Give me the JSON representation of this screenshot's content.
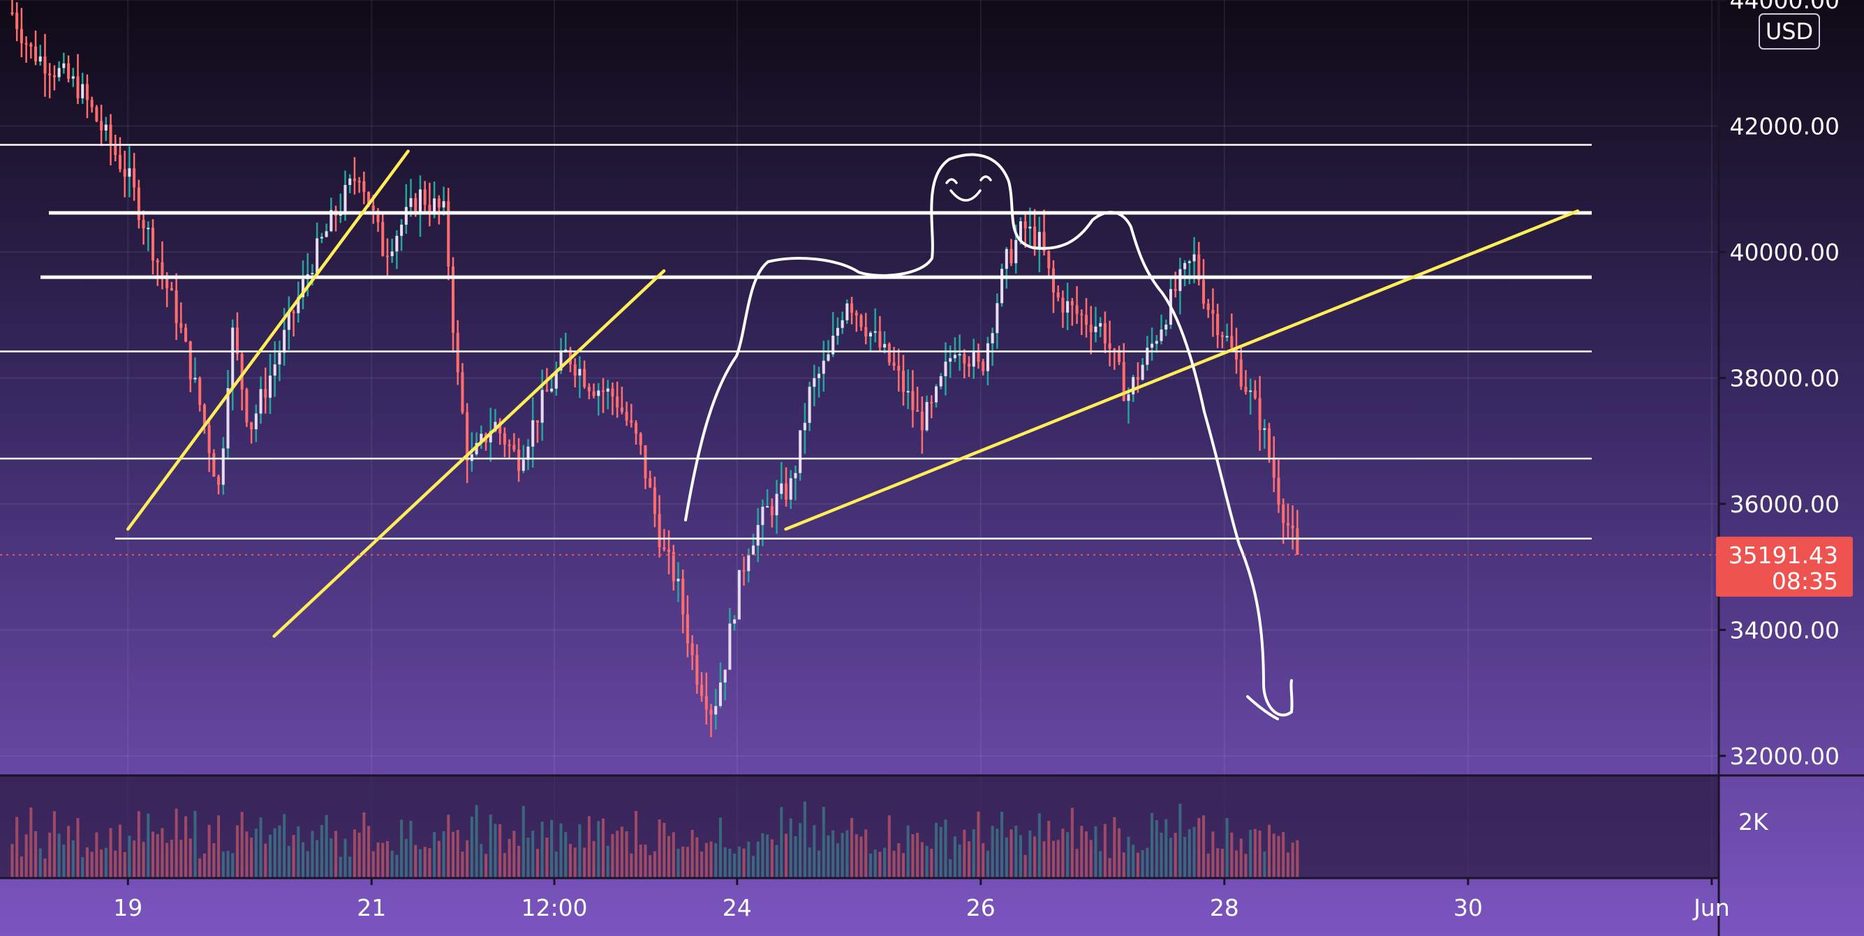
{
  "chart_data": {
    "type": "candlestick",
    "title": "",
    "currency_label": "USD",
    "current_price": "35191.43",
    "countdown": "08:35",
    "y_axis": {
      "range": [
        31700,
        44000
      ],
      "ticks": [
        "44000.00",
        "42000.00",
        "40000.00",
        "38000.00",
        "36000.00",
        "34000.00",
        "32000.00"
      ],
      "tick_values": [
        44000,
        42000,
        40000,
        38000,
        36000,
        34000,
        32000
      ]
    },
    "volume_axis": {
      "ticks": [
        "2K"
      ],
      "tick_values": [
        2000
      ],
      "range": [
        0,
        3600
      ]
    },
    "x_axis": {
      "ticks": [
        "19",
        "21",
        "12:00",
        "24",
        "26",
        "28",
        "30",
        "Jun"
      ],
      "tick_days": [
        19,
        21,
        22.5,
        24,
        26,
        28,
        30,
        32
      ],
      "range_days": [
        17.95,
        33.25
      ]
    },
    "series_path_days": [
      18.05,
      18.2,
      18.6,
      19.0,
      19.2,
      19.4,
      19.6,
      19.75,
      19.85,
      20.0,
      20.2,
      20.5,
      20.7,
      20.9,
      21.1,
      21.4,
      21.6,
      21.7,
      21.8,
      22.0,
      22.2,
      22.4,
      22.6,
      22.8,
      23.0,
      23.2,
      23.4,
      23.5,
      23.65,
      23.8,
      23.9,
      24.0,
      24.1,
      24.25,
      24.45,
      24.6,
      24.75,
      24.9,
      25.1,
      25.3,
      25.5,
      25.6,
      25.8,
      26.0,
      26.2,
      26.35,
      26.5,
      26.6,
      26.8,
      27.0,
      27.2,
      27.4,
      27.6,
      27.75,
      27.85,
      28.0,
      28.15,
      28.3,
      28.45,
      28.6
    ],
    "series_path_prices": [
      43800,
      43200,
      42600,
      41200,
      40100,
      39000,
      37500,
      36200,
      38800,
      37200,
      38200,
      39800,
      40600,
      41300,
      40000,
      40900,
      40600,
      38100,
      36600,
      37300,
      36700,
      37600,
      38400,
      37900,
      37700,
      36900,
      35200,
      34800,
      33400,
      32700,
      33500,
      34600,
      35400,
      35900,
      36300,
      37800,
      38300,
      39300,
      38700,
      38100,
      37300,
      37500,
      38600,
      38100,
      39800,
      40400,
      40100,
      39300,
      39000,
      38800,
      37700,
      38500,
      39400,
      39900,
      39200,
      38700,
      38000,
      37300,
      36100,
      35191
    ],
    "volume_profile": [
      1200,
      1500,
      1350,
      1600,
      1800,
      1450,
      1700,
      1250,
      1500,
      1900,
      1400,
      1650,
      1300,
      1750,
      1550,
      1200,
      1450,
      1350,
      1600,
      1800,
      1250,
      1500,
      1700,
      1400,
      1550,
      1300,
      1800,
      1650,
      1450,
      1900,
      1200,
      1500,
      1350,
      1600,
      1250,
      1700,
      1450,
      1550,
      1300,
      1800
    ],
    "horizontal_levels": [
      41700,
      40620,
      39600,
      38420,
      36720,
      35450
    ],
    "trendlines": [
      {
        "from": [
          19.0,
          35600
        ],
        "to": [
          21.3,
          41600
        ]
      },
      {
        "from": [
          20.2,
          33900
        ],
        "to": [
          23.4,
          39700
        ]
      },
      {
        "from": [
          24.4,
          35600
        ],
        "to": [
          30.9,
          40650
        ]
      }
    ],
    "colors": {
      "up": "#e7dcef",
      "down": "#ff6d6d",
      "wick_up": "#26a69a",
      "wick_down": "#ff6d6d",
      "level": "#ffffff",
      "trendline": "#ffee58",
      "price_tag": "#ef5350",
      "bg_top": "#0f0a16",
      "bg_bottom": "#7b55c0"
    }
  }
}
